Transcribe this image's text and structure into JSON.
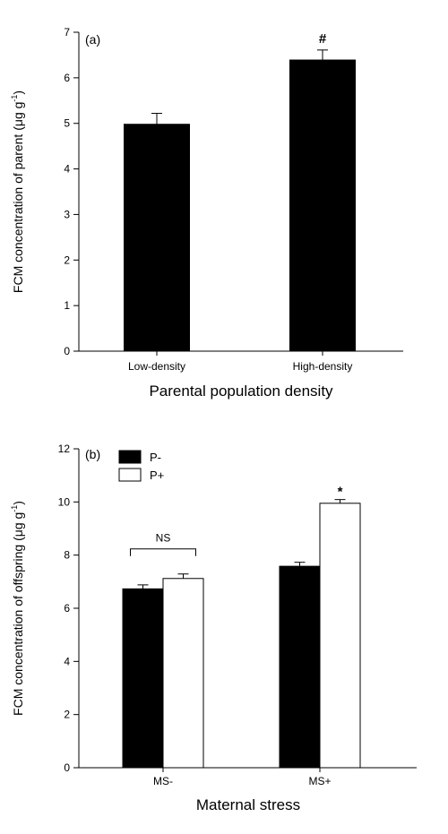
{
  "chart_data": [
    {
      "type": "bar",
      "panel_label": "(a)",
      "categories": [
        "Low-density",
        "High-density"
      ],
      "values": [
        4.98,
        6.39
      ],
      "errors": [
        0.24,
        0.22
      ],
      "annotations": [
        "",
        "#"
      ],
      "colors": [
        "#000000",
        "#000000"
      ],
      "xlabel": "Parental population density",
      "ylabel": "FCM concentration of parent (μg g",
      "ylabel_sup": "-1",
      "ylabel_close": ")",
      "ylim": [
        0,
        7
      ],
      "yticks": [
        "0",
        "1",
        "2",
        "3",
        "4",
        "5",
        "6",
        "7"
      ]
    },
    {
      "type": "bar",
      "panel_label": "(b)",
      "categories": [
        "MS-",
        "MS+"
      ],
      "series": [
        {
          "name": "P-",
          "color": "#000000",
          "values": [
            6.73,
            7.58
          ],
          "errors": [
            0.15,
            0.15
          ]
        },
        {
          "name": "P+",
          "color": "#ffffff",
          "values": [
            7.12,
            9.95
          ],
          "errors": [
            0.17,
            0.14
          ]
        }
      ],
      "annotations": {
        "group_0": "NS",
        "group_1": "*"
      },
      "legend": "top-left",
      "xlabel": "Maternal stress",
      "ylabel": "FCM concentration of offspring (μg g",
      "ylabel_sup": "-1",
      "ylabel_close": ")",
      "ylim": [
        0,
        12
      ],
      "yticks": [
        "0",
        "2",
        "4",
        "6",
        "8",
        "10",
        "12"
      ]
    }
  ]
}
